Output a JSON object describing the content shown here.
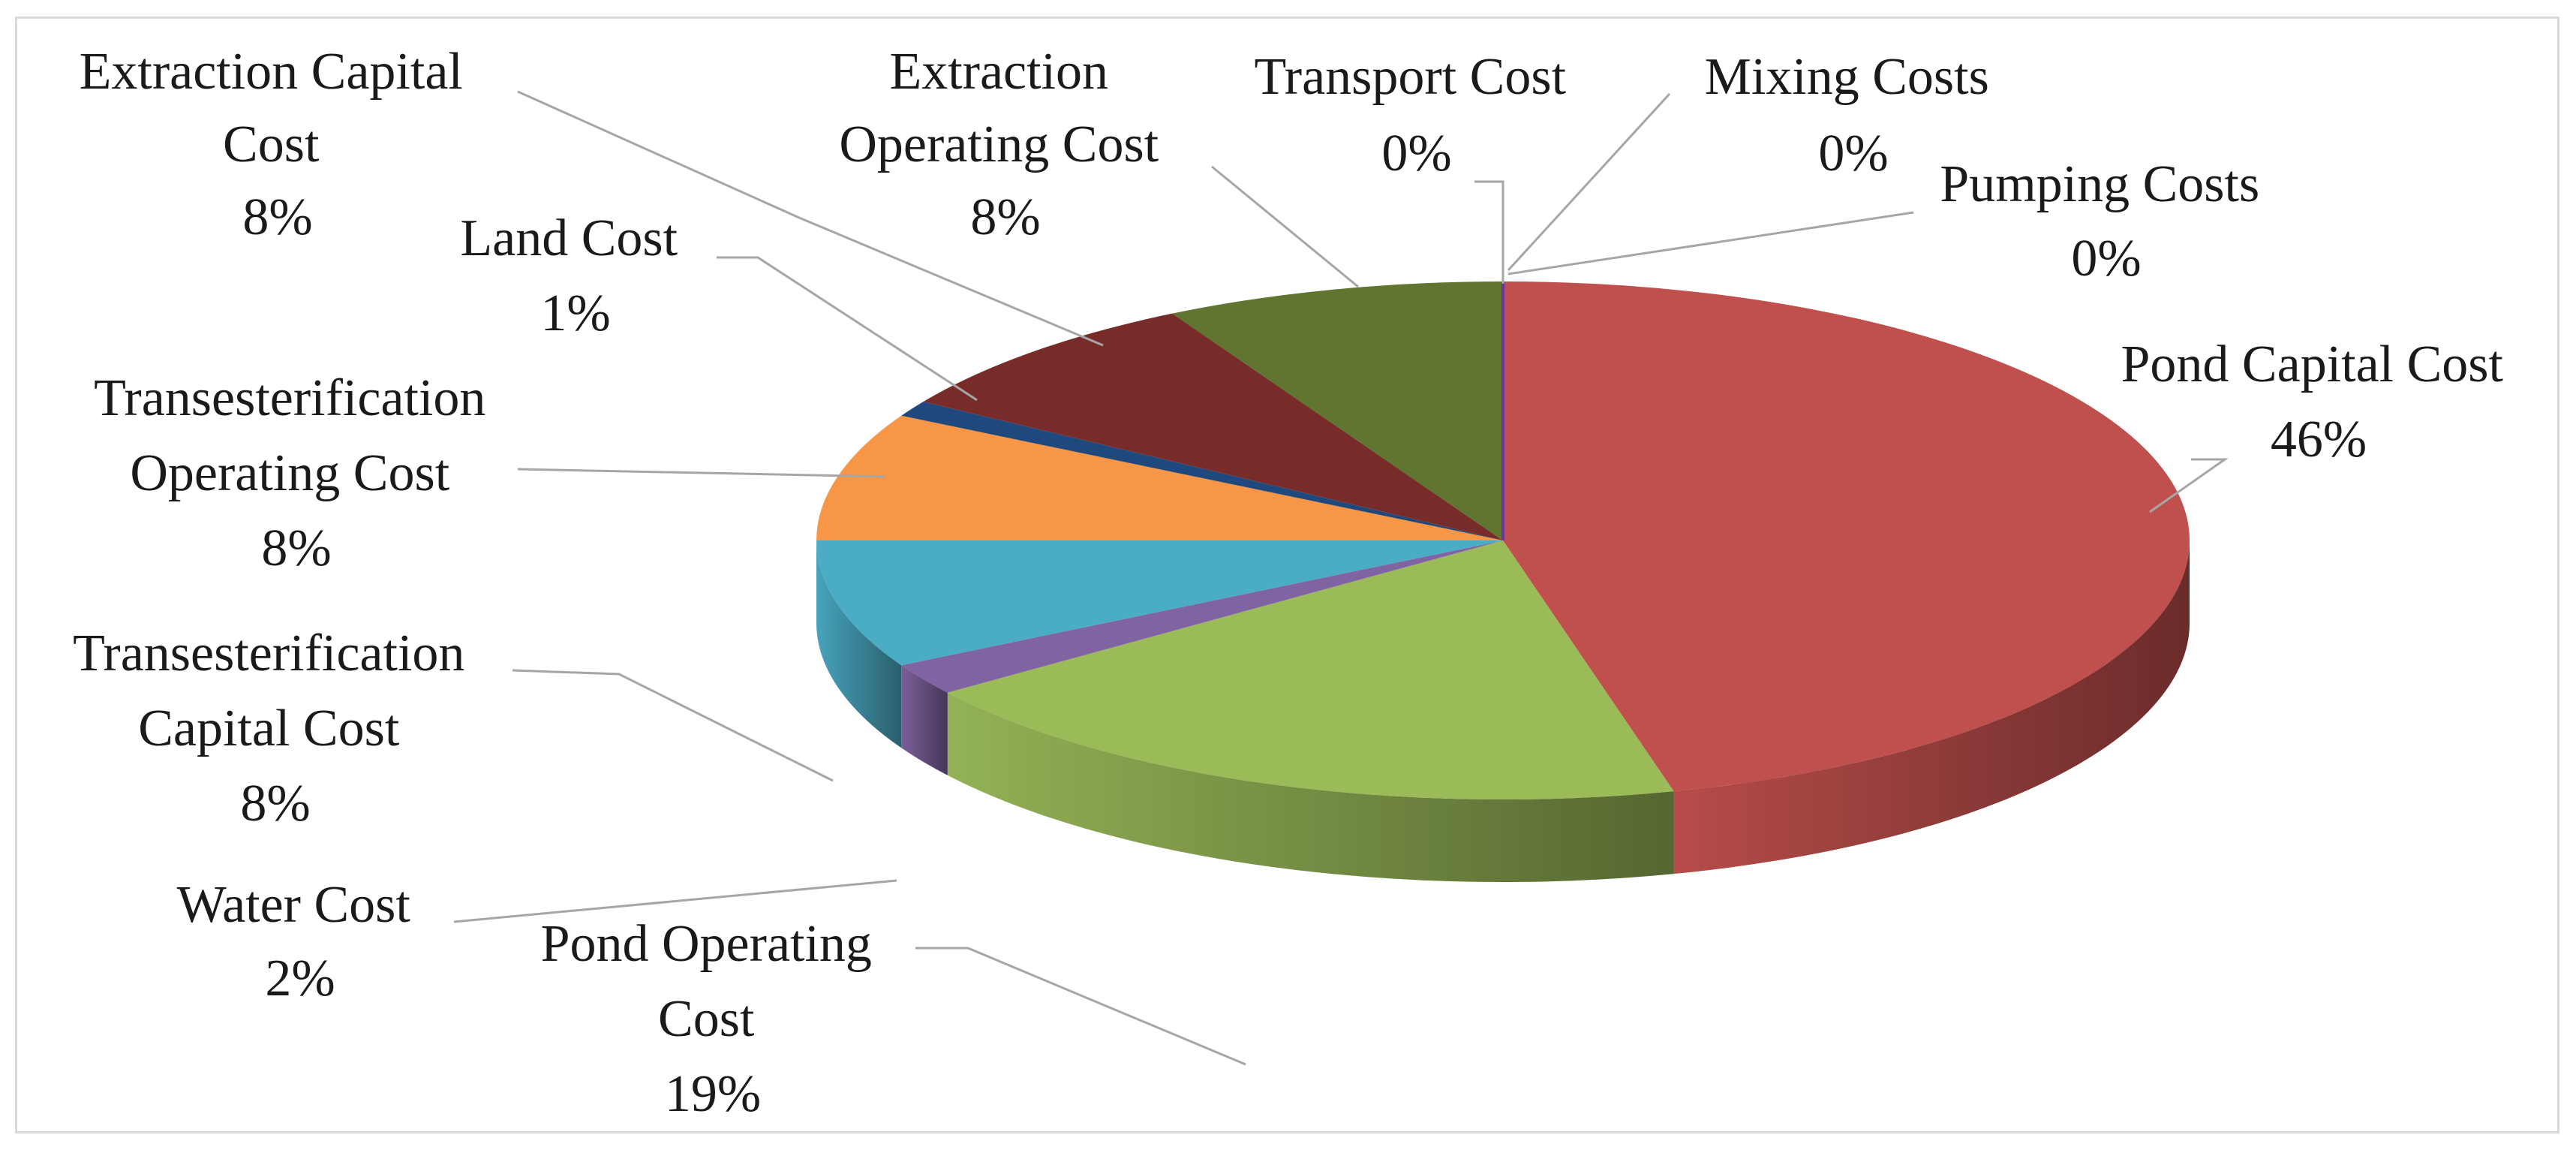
{
  "chart_data": {
    "type": "pie",
    "style": "3d-exploded-none",
    "slices": [
      {
        "name": "Pond Capital Cost",
        "value": 46,
        "label": "46%",
        "color": "#c0504d"
      },
      {
        "name": "Pond Operating Cost",
        "value": 19,
        "label": "19%",
        "color": "#9bbb59"
      },
      {
        "name": "Water Cost",
        "value": 2,
        "label": "2%",
        "color": "#8064a2"
      },
      {
        "name": "Transesterification Capital Cost",
        "value": 8,
        "label": "8%",
        "color": "#4bacc6"
      },
      {
        "name": "Transesterification Operating Cost",
        "value": 8,
        "label": "8%",
        "color": "#f79646"
      },
      {
        "name": "Land Cost",
        "value": 1,
        "label": "1%",
        "color": "#1f497d"
      },
      {
        "name": "Extraction Capital Cost",
        "value": 8,
        "label": "8%",
        "color": "#772c2a"
      },
      {
        "name": "Extraction Operating Cost",
        "value": 8,
        "label": "8%",
        "color": "#5f7530"
      },
      {
        "name": "Transport Cost",
        "value": 0,
        "label": "0%",
        "color": "#4f81bd"
      },
      {
        "name": "Mixing Costs",
        "value": 0,
        "label": "0%",
        "color": "#2c4d75"
      },
      {
        "name": "Pumping Costs",
        "value": 0,
        "label": "0%",
        "color": "#7030a0"
      }
    ]
  },
  "labels": {
    "pond_capital": {
      "line1": "Pond Capital Cost",
      "pct": "46%"
    },
    "pond_operating": {
      "line1": "Pond Operating",
      "line2": "Cost",
      "pct": "19%"
    },
    "water": {
      "line1": "Water Cost",
      "pct": "2%"
    },
    "trans_capital": {
      "line1": "Transesterification",
      "line2": "Capital Cost",
      "pct": "8%"
    },
    "trans_operating": {
      "line1": "Transesterification",
      "line2": "Operating Cost",
      "pct": "8%"
    },
    "land": {
      "line1": "Land Cost",
      "pct": "1%"
    },
    "extraction_capital": {
      "line1": "Extraction  Capital",
      "line2": "Cost",
      "pct": "8%"
    },
    "extraction_operating": {
      "line1": "Extraction",
      "line2": "Operating Cost",
      "pct": "8%"
    },
    "transport": {
      "line1": "Transport Cost",
      "pct": "0%"
    },
    "mixing": {
      "line1": "Mixing  Costs",
      "pct": "0%"
    },
    "pumping": {
      "line1": "Pumping Costs",
      "pct": "0%"
    }
  }
}
